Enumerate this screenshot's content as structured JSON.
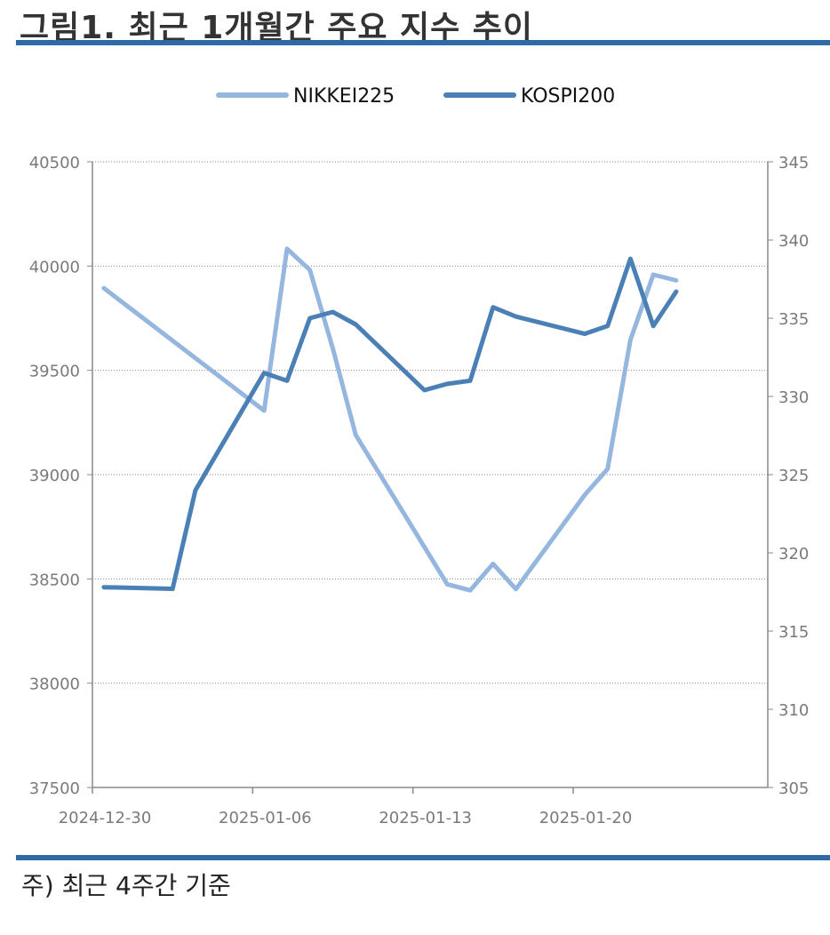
{
  "page": {
    "title": "그림1. 최근 1개월간 주요 지수 추이",
    "footnote": "주) 최근 4주간 기준",
    "accent_color": "#2e6aa3"
  },
  "chart_data": {
    "type": "line",
    "title": "",
    "xlabel": "",
    "ylabel": "",
    "legend_position": "top-center",
    "grid": true,
    "x_tick_labels": [
      "2024-12-30",
      "2025-01-06",
      "2025-01-13",
      "2025-01-20"
    ],
    "y_left": {
      "min": 37500,
      "max": 40500,
      "ticks": [
        37500,
        38000,
        38500,
        39000,
        39500,
        40000,
        40500
      ]
    },
    "y_right": {
      "min": 305,
      "max": 345,
      "ticks": [
        305,
        310,
        315,
        320,
        325,
        330,
        335,
        340,
        345
      ]
    },
    "series": [
      {
        "name": "NIKKEI225",
        "axis": "left",
        "color": "#95b6de",
        "points": [
          [
            "2024-12-30",
            39894
          ],
          [
            "2025-01-06",
            39307
          ],
          [
            "2025-01-07",
            40083
          ],
          [
            "2025-01-08",
            39981
          ],
          [
            "2025-01-09",
            39605
          ],
          [
            "2025-01-10",
            39190
          ],
          [
            "2025-01-14",
            38474
          ],
          [
            "2025-01-15",
            38445
          ],
          [
            "2025-01-16",
            38572
          ],
          [
            "2025-01-17",
            38451
          ],
          [
            "2025-01-20",
            38902
          ],
          [
            "2025-01-21",
            39027
          ],
          [
            "2025-01-22",
            39646
          ],
          [
            "2025-01-23",
            39959
          ],
          [
            "2025-01-24",
            39931
          ]
        ]
      },
      {
        "name": "KOSPI200",
        "axis": "right",
        "color": "#4a80b5",
        "points": [
          [
            "2024-12-30",
            317.8
          ],
          [
            "2025-01-02",
            317.7
          ],
          [
            "2025-01-03",
            324.0
          ],
          [
            "2025-01-06",
            331.5
          ],
          [
            "2025-01-07",
            331.0
          ],
          [
            "2025-01-08",
            335.0
          ],
          [
            "2025-01-09",
            335.4
          ],
          [
            "2025-01-10",
            334.6
          ],
          [
            "2025-01-13",
            330.4
          ],
          [
            "2025-01-14",
            330.8
          ],
          [
            "2025-01-15",
            331.0
          ],
          [
            "2025-01-16",
            335.7
          ],
          [
            "2025-01-17",
            335.1
          ],
          [
            "2025-01-20",
            334.0
          ],
          [
            "2025-01-21",
            334.5
          ],
          [
            "2025-01-22",
            338.8
          ],
          [
            "2025-01-23",
            334.5
          ],
          [
            "2025-01-24",
            336.7
          ]
        ]
      }
    ]
  }
}
